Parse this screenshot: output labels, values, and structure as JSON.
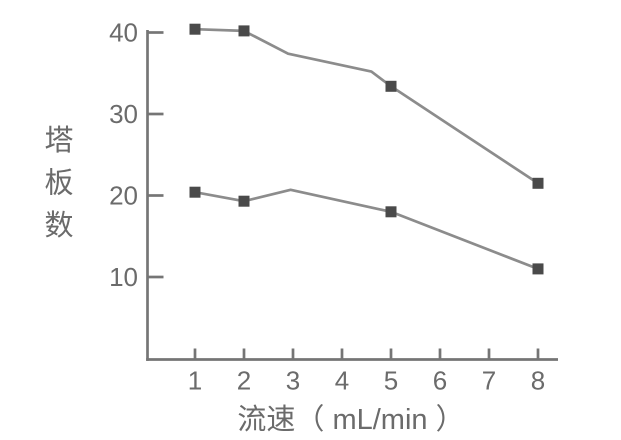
{
  "chart_data": {
    "type": "line",
    "title": "",
    "xlabel": "流速（ mL/min ）",
    "ylabel": "塔板数",
    "x_ticks": [
      1,
      2,
      3,
      4,
      5,
      6,
      7,
      8
    ],
    "y_ticks": [
      10,
      20,
      30,
      40
    ],
    "xlim": [
      0,
      8.4
    ],
    "ylim": [
      0,
      40.5
    ],
    "grid": false,
    "legend": "none",
    "marker_shape": "square",
    "series": [
      {
        "name": "upper-series",
        "markers": [
          [
            1,
            40.4
          ],
          [
            2,
            40.2
          ],
          [
            5,
            33.4
          ],
          [
            8,
            21.5
          ]
        ],
        "path": [
          [
            1,
            40.4
          ],
          [
            2,
            40.2
          ],
          [
            2.9,
            37.4
          ],
          [
            4.6,
            35.2
          ],
          [
            5,
            33.4
          ],
          [
            8,
            21.5
          ]
        ]
      },
      {
        "name": "lower-series",
        "markers": [
          [
            1,
            20.4
          ],
          [
            2,
            19.3
          ],
          [
            5,
            18.0
          ],
          [
            8,
            11.0
          ]
        ],
        "path": [
          [
            1,
            20.4
          ],
          [
            2,
            19.3
          ],
          [
            2.95,
            20.7
          ],
          [
            5,
            18.0
          ],
          [
            8,
            11.0
          ]
        ]
      }
    ],
    "colors": {
      "axis": "#757575",
      "line": "#8c8c8c",
      "marker": "#4a4a4a",
      "text": "#6b6b6b",
      "background": "#ffffff"
    }
  }
}
